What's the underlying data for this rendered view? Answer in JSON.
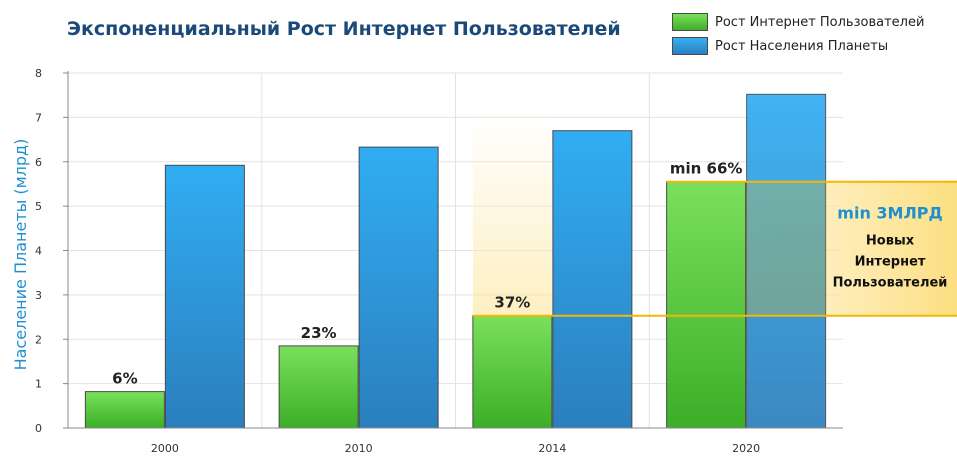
{
  "colors": {
    "internet": "#55c53a",
    "population": "#2d93d6",
    "highlight": "#f5c518",
    "title": "#1b4a7a",
    "callout_head": "#1f8fd0"
  },
  "chart_data": {
    "type": "bar",
    "title": "Экспоненциальный Рост Интернет Пользователей",
    "xlabel": "",
    "ylabel": "Население Планеты (млрд)",
    "ylim": [
      0,
      8
    ],
    "yticks": [
      "0",
      "1",
      "2",
      "3",
      "4",
      "5",
      "6",
      "7",
      "8"
    ],
    "grid": true,
    "legend_position": "top-right",
    "categories": [
      "2000",
      "2010",
      "2014",
      "2020"
    ],
    "series": [
      {
        "name": "Рост Интернет Пользователей",
        "values": [
          0.82,
          1.85,
          2.53,
          5.55
        ],
        "labels": [
          "6%",
          "23%",
          "37%",
          "min 66%"
        ]
      },
      {
        "name": "Рост Населения Планеты",
        "values": [
          5.92,
          6.33,
          6.7,
          7.52
        ]
      }
    ],
    "annotation": {
      "from": 2.53,
      "to": 5.55,
      "heading": "min 3МЛРД",
      "lines": [
        "Новых",
        "Интернет",
        "Пользователей"
      ]
    }
  }
}
